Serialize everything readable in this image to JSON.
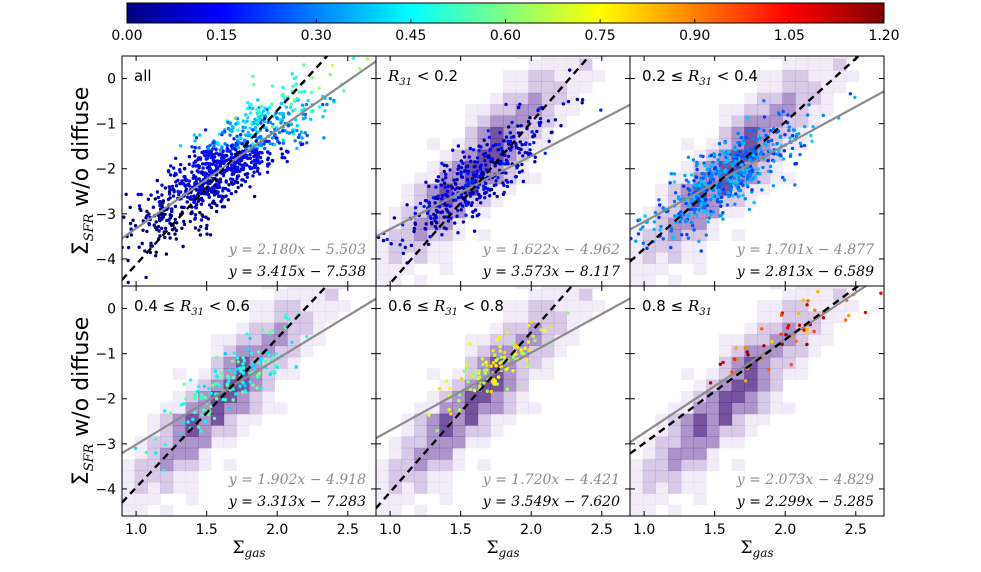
{
  "figure": {
    "ylabel_main": "Σ",
    "ylabel_sub": "SFR",
    "ylabel_rest": " w/o diffuse",
    "xlabel_main": "Σ",
    "xlabel_sub": "gas"
  },
  "colorbar": {
    "ticks": [
      "0.00",
      "0.15",
      "0.30",
      "0.45",
      "0.60",
      "0.75",
      "0.90",
      "1.05",
      "1.20"
    ],
    "range": [
      0,
      1.2
    ],
    "stops": [
      "#00007f",
      "#0000ff",
      "#0080ff",
      "#00ffff",
      "#80ff80",
      "#ffff00",
      "#ff8000",
      "#ff0000",
      "#7f0000"
    ]
  },
  "chart_data": [
    {
      "type": "scatter",
      "panel": "all",
      "label": "all",
      "xlim": [
        0.9,
        2.7
      ],
      "ylim": [
        -4.6,
        0.5
      ],
      "xticks": [
        "1.0",
        "1.5",
        "2.0",
        "2.5"
      ],
      "yticks": [
        "0",
        "−1",
        "−2",
        "−3",
        "−4"
      ],
      "fit_gray": {
        "slope": 2.18,
        "intercept": -5.503,
        "text": "y = 2.180x − 5.503"
      },
      "fit_black": {
        "slope": 3.415,
        "intercept": -7.538,
        "text": "y = 3.415x − 7.538"
      },
      "scatter": {
        "cx": 1.62,
        "cy": -1.95,
        "sx": 0.33,
        "sy": 0.58,
        "count": 1000,
        "r31": [
          0.0,
          1.2
        ],
        "contours": false
      }
    },
    {
      "type": "scatter",
      "panel": "r1",
      "label": "R31 < 0.2",
      "label_parts": [
        "",
        "R",
        "31",
        " <  0.2"
      ],
      "xlim": [
        0.9,
        2.7
      ],
      "ylim": [
        -4.6,
        0.5
      ],
      "xticks": [
        "1.0",
        "1.5",
        "2.0",
        "2.5"
      ],
      "yticks": [
        "0",
        "−1",
        "−2",
        "−3",
        "−4"
      ],
      "fit_gray": {
        "slope": 1.622,
        "intercept": -4.962,
        "text": "y = 1.622x − 4.962"
      },
      "fit_black": {
        "slope": 3.573,
        "intercept": -8.117,
        "text": "y = 3.573x − 8.117"
      },
      "scatter": {
        "cx": 1.62,
        "cy": -2.2,
        "sx": 0.27,
        "sy": 0.5,
        "count": 400,
        "r31": [
          0.0,
          0.2
        ],
        "contours": true
      }
    },
    {
      "type": "scatter",
      "panel": "r2",
      "label": "0.2 ≤ R31 < 0.4",
      "label_parts": [
        "0.2  ≤",
        "R",
        "31",
        " <  0.4"
      ],
      "xlim": [
        0.9,
        2.7
      ],
      "ylim": [
        -4.6,
        0.5
      ],
      "xticks": [
        "1.0",
        "1.5",
        "2.0",
        "2.5"
      ],
      "yticks": [
        "0",
        "−1",
        "−2",
        "−3",
        "−4"
      ],
      "fit_gray": {
        "slope": 1.701,
        "intercept": -4.877,
        "text": "y = 1.701x − 4.877"
      },
      "fit_black": {
        "slope": 2.813,
        "intercept": -6.589,
        "text": "y = 2.813x − 6.589"
      },
      "scatter": {
        "cx": 1.58,
        "cy": -2.2,
        "sx": 0.27,
        "sy": 0.5,
        "count": 520,
        "r31": [
          0.2,
          0.4
        ],
        "contours": true
      }
    },
    {
      "type": "scatter",
      "panel": "r3",
      "label": "0.4 ≤ R31 < 0.6",
      "label_parts": [
        "0.4  ≤",
        "R",
        "31",
        " <  0.6"
      ],
      "xlim": [
        0.9,
        2.7
      ],
      "ylim": [
        -4.6,
        0.5
      ],
      "xticks": [
        "1.0",
        "1.5",
        "2.0",
        "2.5"
      ],
      "yticks": [
        "0",
        "−1",
        "−2",
        "−3",
        "−4"
      ],
      "fit_gray": {
        "slope": 1.902,
        "intercept": -4.918,
        "text": "y = 1.902x − 4.918"
      },
      "fit_black": {
        "slope": 3.313,
        "intercept": -7.283,
        "text": "y = 3.313x − 7.283"
      },
      "scatter": {
        "cx": 1.66,
        "cy": -1.7,
        "sx": 0.22,
        "sy": 0.45,
        "count": 150,
        "r31": [
          0.4,
          0.6
        ],
        "contours": true
      }
    },
    {
      "type": "scatter",
      "panel": "r4",
      "label": "0.6 ≤ R31 < 0.8",
      "label_parts": [
        "0.6  ≤",
        "R",
        "31",
        " <  0.8"
      ],
      "xlim": [
        0.9,
        2.7
      ],
      "ylim": [
        -4.6,
        0.5
      ],
      "xticks": [
        "1.0",
        "1.5",
        "2.0",
        "2.5"
      ],
      "yticks": [
        "0",
        "−1",
        "−2",
        "−3",
        "−4"
      ],
      "fit_gray": {
        "slope": 1.72,
        "intercept": -4.421,
        "text": "y = 1.720x − 4.421"
      },
      "fit_black": {
        "slope": 3.549,
        "intercept": -7.62,
        "text": "y = 3.549x − 7.620"
      },
      "scatter": {
        "cx": 1.72,
        "cy": -1.35,
        "sx": 0.18,
        "sy": 0.4,
        "count": 110,
        "r31": [
          0.6,
          0.8
        ],
        "contours": true
      }
    },
    {
      "type": "scatter",
      "panel": "r5",
      "label": "0.8 ≤ R31",
      "label_parts": [
        "0.8  ≤",
        "R",
        "31",
        ""
      ],
      "xlim": [
        0.9,
        2.7
      ],
      "ylim": [
        -4.6,
        0.5
      ],
      "xticks": [
        "1.0",
        "1.5",
        "2.0",
        "2.5"
      ],
      "yticks": [
        "0",
        "−1",
        "−2",
        "−3",
        "−4"
      ],
      "fit_gray": {
        "slope": 2.073,
        "intercept": -4.829,
        "text": "y = 2.073x − 4.829"
      },
      "fit_black": {
        "slope": 2.299,
        "intercept": -5.285,
        "text": "y = 2.299x − 5.285"
      },
      "scatter": {
        "cx": 2.0,
        "cy": -0.6,
        "sx": 0.35,
        "sy": 0.45,
        "count": 55,
        "r31": [
          0.8,
          1.2
        ],
        "contours": true
      }
    }
  ]
}
